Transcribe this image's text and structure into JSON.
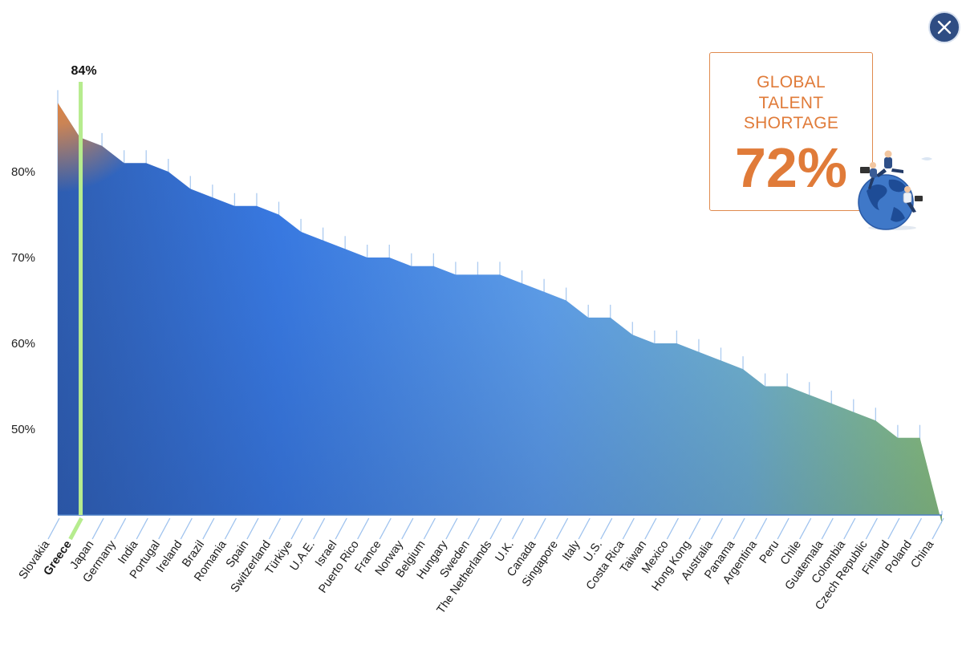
{
  "close_button": {
    "icon": "close-icon",
    "color": "#2f4d83"
  },
  "stat_card": {
    "heading_lines": [
      "GLOBAL",
      "TALENT",
      "SHORTAGE"
    ],
    "value": "72%",
    "accent": "#e07b39"
  },
  "illustration": {
    "icon": "globe-with-people-icon"
  },
  "chart_data": {
    "type": "area",
    "title": "",
    "xlabel": "",
    "ylabel": "",
    "ylim": [
      39,
      90
    ],
    "y_ticks": [
      80,
      70,
      60,
      50
    ],
    "y_tick_labels": [
      "80%",
      "70%",
      "60%",
      "50%"
    ],
    "grid": "vertical drop lines per country",
    "highlight": {
      "category": "Greece",
      "value": 84,
      "label": "84%"
    },
    "categories": [
      "Slovakia",
      "Greece",
      "Japan",
      "Germany",
      "India",
      "Portugal",
      "Ireland",
      "Brazil",
      "Romania",
      "Spain",
      "Switzerland",
      "Türkiye",
      "U.A.E.",
      "Israel",
      "Puerto Rico",
      "France",
      "Norway",
      "Belgium",
      "Hungary",
      "Sweden",
      "The Netherlands",
      "U.K.",
      "Canada",
      "Singapore",
      "Italy",
      "U.S.",
      "Costa Rica",
      "Taiwan",
      "Mexico",
      "Hong Kong",
      "Australia",
      "Panama",
      "Argentina",
      "Peru",
      "Chile",
      "Guatemala",
      "Colombia",
      "Czech Republic",
      "Finland",
      "Poland",
      "China"
    ],
    "series": [
      {
        "values": [
          88,
          84,
          83,
          81,
          81,
          80,
          78,
          77,
          76,
          76,
          75,
          73,
          72,
          71,
          70,
          70,
          69,
          69,
          68,
          68,
          68,
          67,
          66,
          65,
          63,
          63,
          61,
          60,
          60,
          59,
          58,
          57,
          55,
          55,
          54,
          53,
          52,
          51,
          49,
          49,
          39
        ]
      }
    ],
    "colors": {
      "start": "#e9823a",
      "mid": "#3d83ec",
      "end": "#96cf72",
      "highlight": "#b6ec8e"
    }
  }
}
